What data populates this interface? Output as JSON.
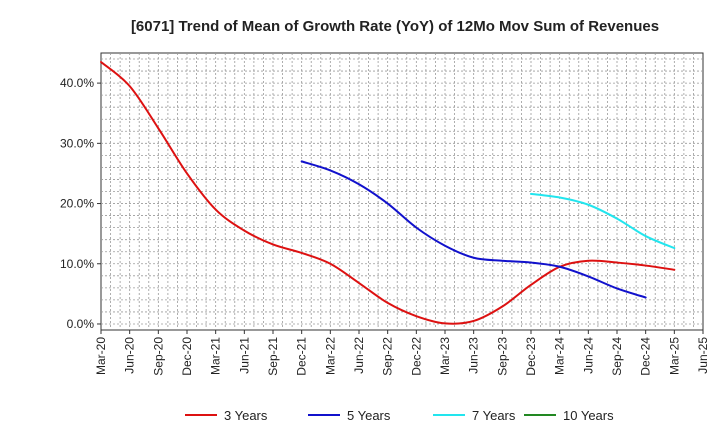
{
  "chart_data": {
    "type": "line",
    "title": "[6071]  Trend of Mean of Growth Rate (YoY) of 12Mo Mov Sum of Revenues",
    "xlabel": "",
    "ylabel": "",
    "ylim": [
      -1,
      45
    ],
    "y_ticks": [
      0,
      10,
      20,
      30,
      40
    ],
    "y_tick_labels": [
      "0.0%",
      "10.0%",
      "20.0%",
      "30.0%",
      "40.0%"
    ],
    "x_tick_labels": [
      "Mar-20",
      "Jun-20",
      "Sep-20",
      "Dec-20",
      "Mar-21",
      "Jun-21",
      "Sep-21",
      "Dec-21",
      "Mar-22",
      "Jun-22",
      "Sep-22",
      "Dec-22",
      "Mar-23",
      "Jun-23",
      "Sep-23",
      "Dec-23",
      "Mar-24",
      "Jun-24",
      "Sep-24",
      "Dec-24",
      "Mar-25",
      "Jun-25"
    ],
    "grid": true,
    "legend_position": "bottom",
    "series": [
      {
        "name": "3 Years",
        "color": "#dd1111",
        "start_index": 0,
        "values": [
          43.5,
          39.5,
          32.5,
          25.0,
          19.0,
          15.5,
          13.2,
          11.8,
          10.0,
          6.8,
          3.5,
          1.3,
          0.1,
          0.5,
          2.9,
          6.5,
          9.5,
          10.5,
          10.2,
          9.7,
          9.0
        ]
      },
      {
        "name": "5 Years",
        "color": "#1111cc",
        "start_index": 7,
        "values": [
          27.0,
          25.5,
          23.2,
          20.0,
          16.0,
          13.0,
          11.0,
          10.5,
          10.2,
          9.5,
          7.9,
          5.9,
          4.4
        ]
      },
      {
        "name": "7 Years",
        "color": "#22e5ee",
        "start_index": 15,
        "values": [
          21.6,
          21.0,
          19.8,
          17.5,
          14.6,
          12.6
        ]
      },
      {
        "name": "10 Years",
        "color": "#228822",
        "start_index": 0,
        "values": []
      }
    ]
  }
}
